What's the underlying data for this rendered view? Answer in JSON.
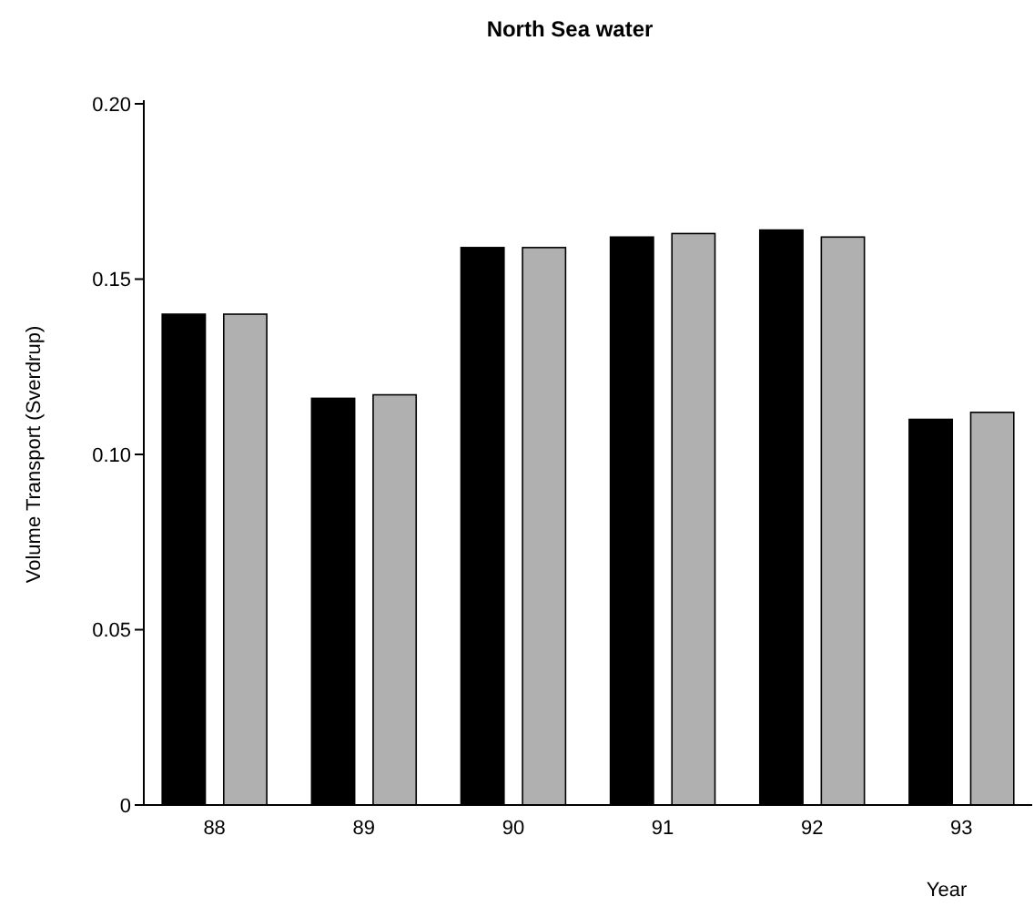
{
  "chart_data": {
    "type": "bar",
    "title": "North Sea water",
    "xlabel": "Year",
    "ylabel": "Volume Transport (Sverdrup)",
    "categories": [
      "88",
      "89",
      "90",
      "91",
      "92",
      "93"
    ],
    "series": [
      {
        "color": "#000000",
        "values": [
          0.14,
          0.116,
          0.159,
          0.162,
          0.164,
          0.11
        ]
      },
      {
        "color": "#b0b0b0",
        "values": [
          0.14,
          0.117,
          0.159,
          0.163,
          0.162,
          0.112
        ]
      }
    ],
    "ylim": [
      0,
      0.2
    ],
    "yticks": [
      0,
      0.05,
      {
        "value": 0.1,
        "label": "0.10"
      },
      0.15,
      {
        "value": 0.2,
        "label": "0.20"
      }
    ],
    "grid": false
  }
}
